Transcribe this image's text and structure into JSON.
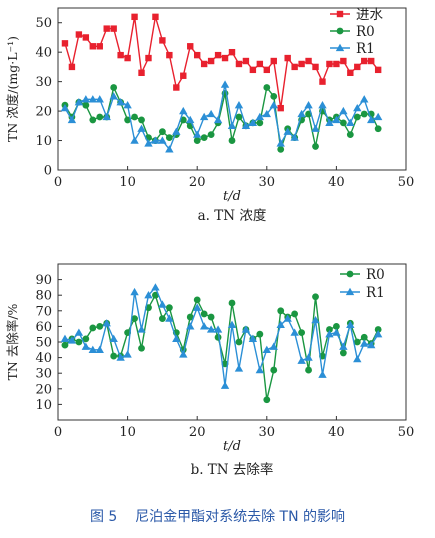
{
  "figure_caption": {
    "label": "图 5",
    "text": "尼泊金甲酯对系统去除 TN 的影响"
  },
  "chart_data": [
    {
      "type": "line",
      "subcaption": "a. TN 浓度",
      "xlabel": "t/d",
      "ylabel": "TN 浓度/(mg·L⁻¹)",
      "xlim": [
        0,
        50
      ],
      "ylim": [
        0,
        55
      ],
      "xticks": [
        "0",
        "10",
        "20",
        "30",
        "40",
        "50"
      ],
      "yticks": [
        "0",
        "10",
        "20",
        "30",
        "40",
        "50"
      ],
      "legend": "top-right",
      "grid": false,
      "series": [
        {
          "name": "进水",
          "color": "#e8212e",
          "marker": "square",
          "x": [
            1,
            2,
            3,
            4,
            5,
            6,
            7,
            8,
            9,
            10,
            11,
            12,
            13,
            14,
            15,
            16,
            17,
            18,
            19,
            20,
            21,
            22,
            23,
            24,
            25,
            26,
            27,
            28,
            29,
            30,
            31,
            32,
            33,
            34,
            35,
            36,
            37,
            38,
            39,
            40,
            41,
            42,
            43,
            44,
            45,
            46
          ],
          "y": [
            43,
            35,
            46,
            45,
            42,
            42,
            48,
            48,
            39,
            38,
            52,
            33,
            38,
            52,
            44,
            39,
            28,
            32,
            42,
            39,
            36,
            37,
            39,
            38,
            40,
            36,
            37,
            34,
            36,
            34,
            37,
            21,
            38,
            35,
            36,
            37,
            35,
            30,
            36,
            36,
            37,
            33,
            35,
            37,
            37,
            34
          ]
        },
        {
          "name": "R0",
          "color": "#1a9641",
          "marker": "circle",
          "x": [
            1,
            2,
            3,
            4,
            5,
            6,
            7,
            8,
            9,
            10,
            11,
            12,
            13,
            14,
            15,
            16,
            17,
            18,
            19,
            20,
            21,
            22,
            23,
            24,
            25,
            26,
            27,
            28,
            29,
            30,
            31,
            32,
            33,
            34,
            35,
            36,
            37,
            38,
            39,
            40,
            41,
            42,
            43,
            44,
            45,
            46
          ],
          "y": [
            22,
            18,
            23,
            22,
            17,
            18,
            18,
            28,
            23,
            17,
            18,
            17,
            11,
            10,
            13,
            11,
            12,
            17,
            15,
            10,
            11,
            12,
            16,
            26,
            10,
            18,
            15,
            16,
            16,
            28,
            25,
            7,
            14,
            11,
            17,
            19,
            8,
            20,
            17,
            18,
            16,
            12,
            18,
            19,
            19,
            14
          ]
        },
        {
          "name": "R1",
          "color": "#2b8fd6",
          "marker": "triangle",
          "x": [
            1,
            2,
            3,
            4,
            5,
            6,
            7,
            8,
            9,
            10,
            11,
            12,
            13,
            14,
            15,
            16,
            17,
            18,
            19,
            20,
            21,
            22,
            23,
            24,
            25,
            26,
            27,
            28,
            29,
            30,
            31,
            32,
            33,
            34,
            35,
            36,
            37,
            38,
            39,
            40,
            41,
            42,
            43,
            44,
            45,
            46
          ],
          "y": [
            21,
            17,
            23,
            24,
            24,
            24,
            18,
            25,
            23,
            22,
            10,
            14,
            9,
            10,
            10,
            7,
            13,
            20,
            17,
            12,
            18,
            19,
            17,
            29,
            15,
            22,
            15,
            16,
            18,
            19,
            22,
            9,
            13,
            11,
            19,
            22,
            14,
            22,
            16,
            17,
            20,
            16,
            21,
            24,
            17,
            18
          ]
        }
      ]
    },
    {
      "type": "line",
      "subcaption": "b. TN 去除率",
      "xlabel": "t/d",
      "ylabel": "TN 去除率/%",
      "xlim": [
        0,
        50
      ],
      "ylim": [
        0,
        100
      ],
      "xticks": [
        "0",
        "10",
        "20",
        "30",
        "40",
        "50"
      ],
      "yticks": [
        "10",
        "20",
        "30",
        "40",
        "50",
        "60",
        "70",
        "80",
        "90"
      ],
      "legend": "top-right",
      "grid": false,
      "series": [
        {
          "name": "R0",
          "color": "#1a9641",
          "marker": "circle",
          "x": [
            1,
            2,
            3,
            4,
            5,
            6,
            7,
            8,
            9,
            10,
            11,
            12,
            13,
            14,
            15,
            16,
            17,
            18,
            19,
            20,
            21,
            22,
            23,
            24,
            25,
            26,
            27,
            28,
            29,
            30,
            31,
            32,
            33,
            34,
            35,
            36,
            37,
            38,
            39,
            40,
            41,
            42,
            43,
            44,
            45,
            46
          ],
          "y": [
            48,
            52,
            50,
            52,
            59,
            60,
            62,
            41,
            41,
            56,
            65,
            46,
            72,
            80,
            65,
            72,
            56,
            45,
            66,
            77,
            68,
            66,
            53,
            36,
            75,
            50,
            58,
            52,
            55,
            13,
            32,
            70,
            66,
            68,
            56,
            32,
            79,
            41,
            58,
            60,
            43,
            62,
            50,
            53,
            49,
            58
          ]
        },
        {
          "name": "R1",
          "color": "#2b8fd6",
          "marker": "triangle",
          "x": [
            1,
            2,
            3,
            4,
            5,
            6,
            7,
            8,
            9,
            10,
            11,
            12,
            13,
            14,
            15,
            16,
            17,
            18,
            19,
            20,
            21,
            22,
            23,
            24,
            25,
            26,
            27,
            28,
            29,
            30,
            31,
            32,
            33,
            34,
            35,
            36,
            37,
            38,
            39,
            40,
            41,
            42,
            43,
            44,
            45,
            46
          ],
          "y": [
            52,
            51,
            56,
            47,
            45,
            45,
            62,
            52,
            40,
            42,
            82,
            58,
            80,
            85,
            74,
            65,
            52,
            42,
            60,
            72,
            60,
            58,
            58,
            22,
            61,
            33,
            58,
            52,
            32,
            45,
            47,
            61,
            65,
            56,
            38,
            40,
            64,
            29,
            55,
            56,
            47,
            61,
            39,
            49,
            48,
            55
          ]
        }
      ]
    }
  ]
}
